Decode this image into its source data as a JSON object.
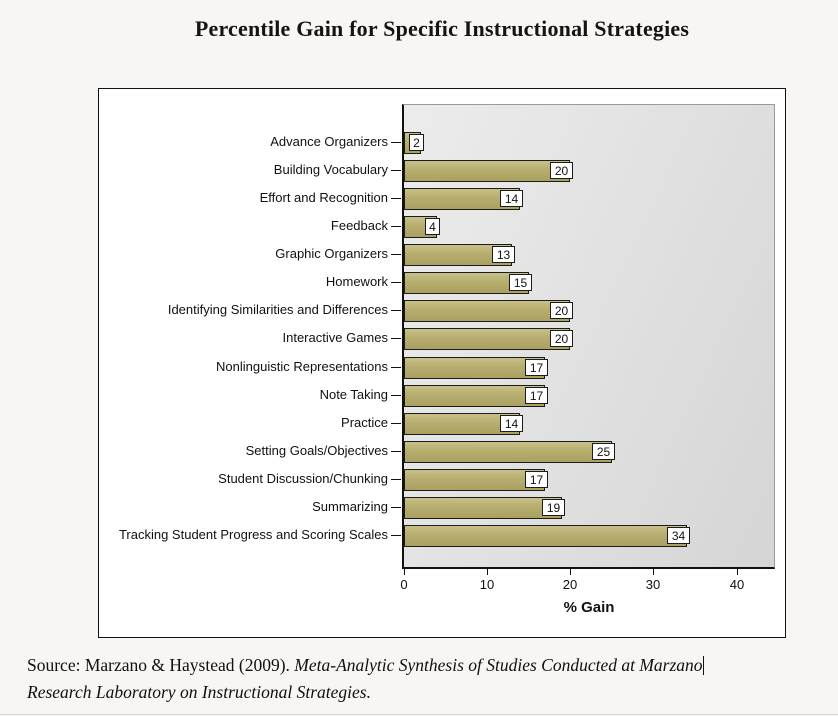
{
  "page": {
    "title": "Percentile Gain for Specific Instructional Strategies"
  },
  "source": {
    "prefix": "Source: Marzano & Haystead (2009). ",
    "italic_line1": "Meta-Analytic Synthesis of Studies Conducted at Marzano",
    "italic_line2": "Research Laboratory on Instructional Strategies."
  },
  "chart_data": {
    "type": "bar",
    "orientation": "horizontal",
    "title": "Percentile Gain for Specific Instructional Strategies",
    "xlabel": "% Gain",
    "xlim": [
      0,
      44.5
    ],
    "xticks": [
      0,
      10,
      20,
      30,
      40
    ],
    "grid": false,
    "value_labels": true,
    "bar_color": "#b4ab6c",
    "plot_bg": "#e0e0e0",
    "categories": [
      "Advance Organizers",
      "Building Vocabulary",
      "Effort and Recognition",
      "Feedback",
      "Graphic Organizers",
      "Homework",
      "Identifying Similarities and Differences",
      "Interactive Games",
      "Nonlinguistic Representations",
      "Note Taking",
      "Practice",
      "Setting Goals/Objectives",
      "Student Discussion/Chunking",
      "Summarizing",
      "Tracking Student Progress and Scoring Scales"
    ],
    "values": [
      2,
      20,
      14,
      4,
      13,
      15,
      20,
      20,
      17,
      17,
      14,
      25,
      17,
      19,
      34
    ]
  }
}
